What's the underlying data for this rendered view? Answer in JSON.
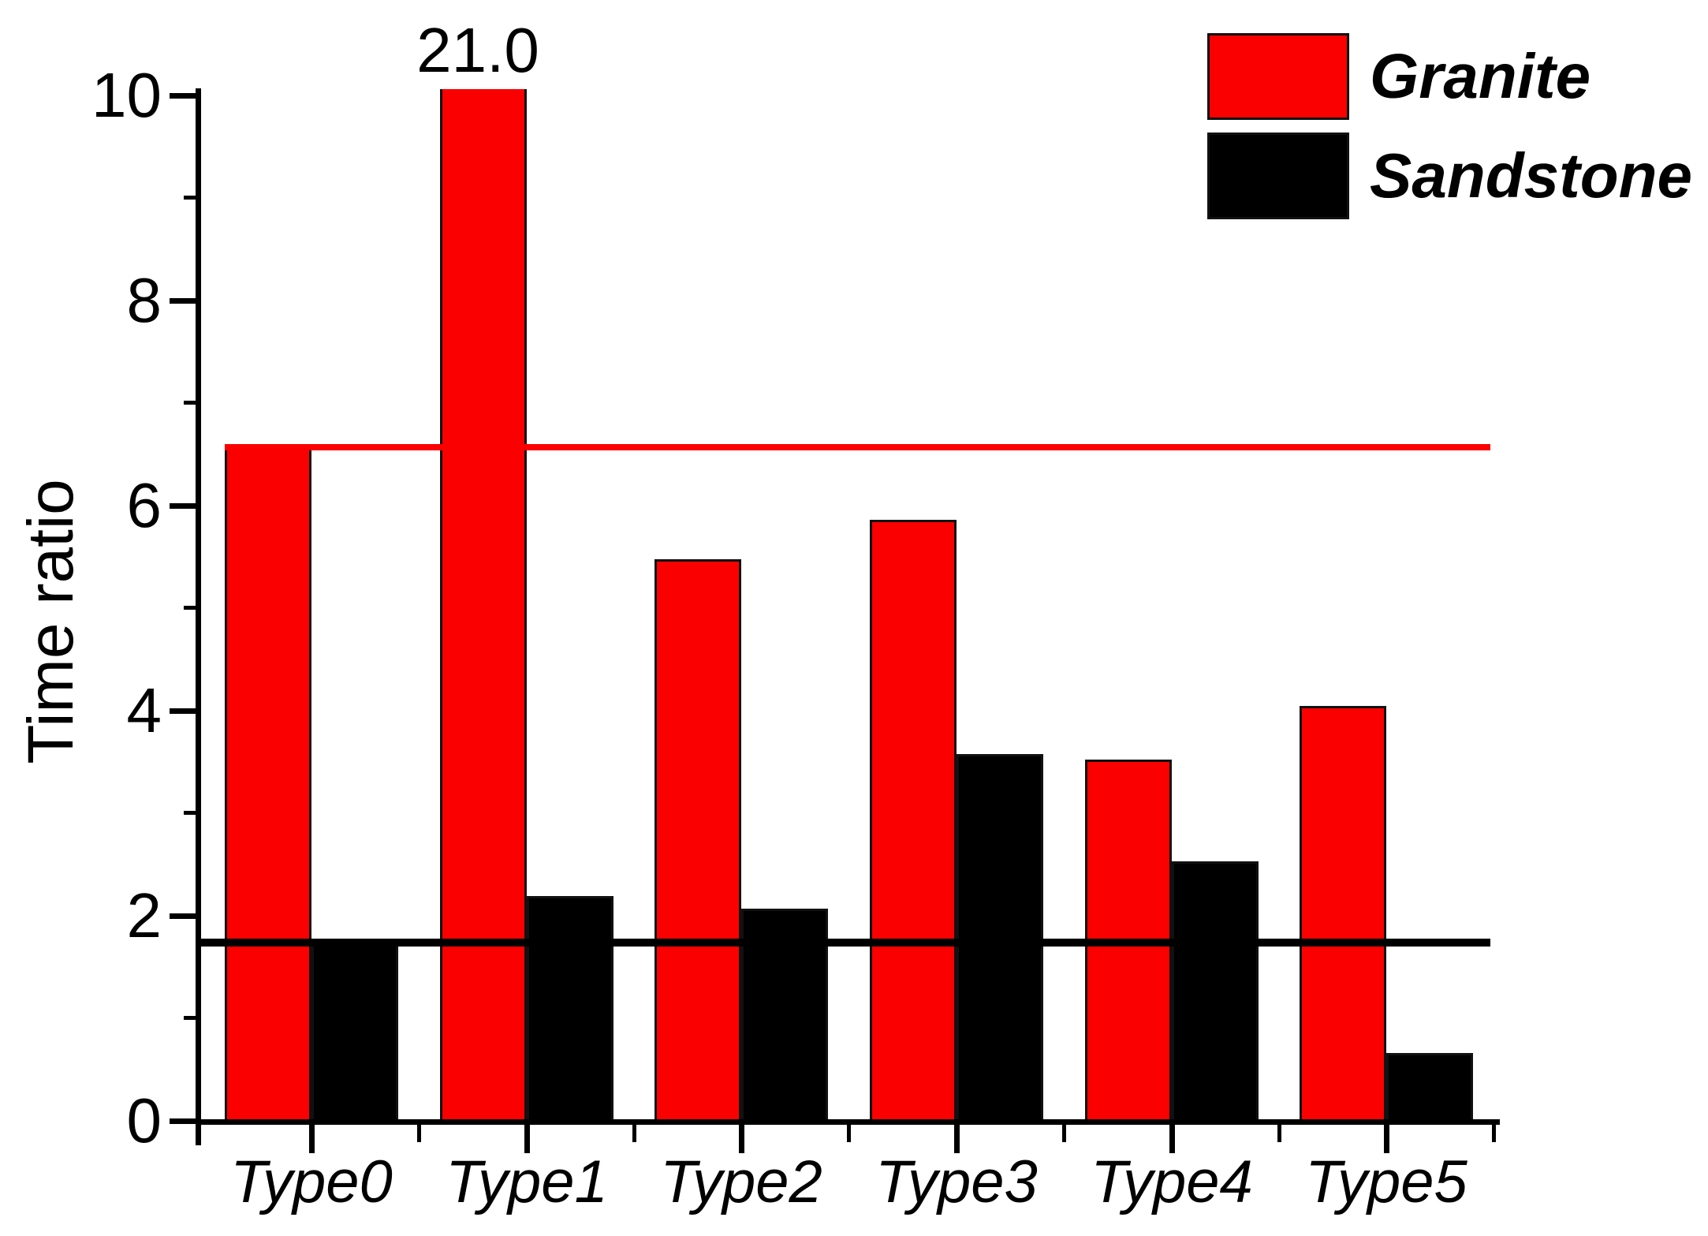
{
  "chart_data": {
    "type": "bar",
    "title": "",
    "categories": [
      "Type0",
      "Type1",
      "Type2",
      "Type3",
      "Type4",
      "Type5"
    ],
    "series": [
      {
        "name": "Granite",
        "color": "#fa0000",
        "values": [
          6.6,
          21.0,
          5.48,
          5.86,
          3.52,
          4.05
        ]
      },
      {
        "name": "Sandstone",
        "color": "#000000",
        "values": [
          1.78,
          2.19,
          2.07,
          3.58,
          2.53,
          0.66
        ]
      }
    ],
    "xlabel": "",
    "ylabel": "Time ratio",
    "ylim": [
      0,
      10
    ],
    "yticks_major": [
      0,
      2,
      4,
      6,
      8,
      10
    ],
    "yticks_minor": [
      1,
      3,
      5,
      7,
      9
    ],
    "grid": false,
    "background": "#ffffff",
    "bar_annotations": [
      {
        "series": "Granite",
        "category": "Type1",
        "text": "21.0",
        "note": "bar clipped at y-axis maximum 10"
      }
    ],
    "reference_lines": [
      {
        "series": "Granite",
        "color": "#fa0000",
        "value": 6.6,
        "starts_at": "first-bar"
      },
      {
        "series": "Sandstone",
        "color": "#000000",
        "value": 1.78,
        "starts_at": "axis"
      }
    ],
    "legend": {
      "position": "top-right",
      "entries": [
        "Granite",
        "Sandstone"
      ]
    }
  }
}
